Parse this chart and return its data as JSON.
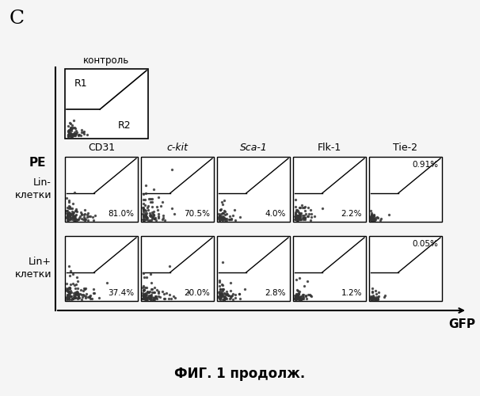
{
  "title_letter": "C",
  "control_label": "контроль",
  "pe_label": "PE",
  "gfp_label": "GFP",
  "caption": "ФИГ. 1 продолж.",
  "row_labels": [
    "Lin-\nклетки",
    "Lin+\nклетки"
  ],
  "col_labels": [
    "CD31",
    "c-kit",
    "Sca-1",
    "Flk-1",
    "Tie-2"
  ],
  "percentages_row1": [
    "81.0%",
    "70.5%",
    "4.0%",
    "2.2%",
    "0.91%"
  ],
  "percentages_row2": [
    "37.4%",
    "20.0%",
    "2.8%",
    "1.2%",
    "0.05%"
  ],
  "pct_upper_row1": [
    false,
    false,
    false,
    false,
    true
  ],
  "pct_upper_row2": [
    false,
    false,
    false,
    false,
    true
  ],
  "background_color": "#f5f5f5",
  "scatter_color": "#333333"
}
